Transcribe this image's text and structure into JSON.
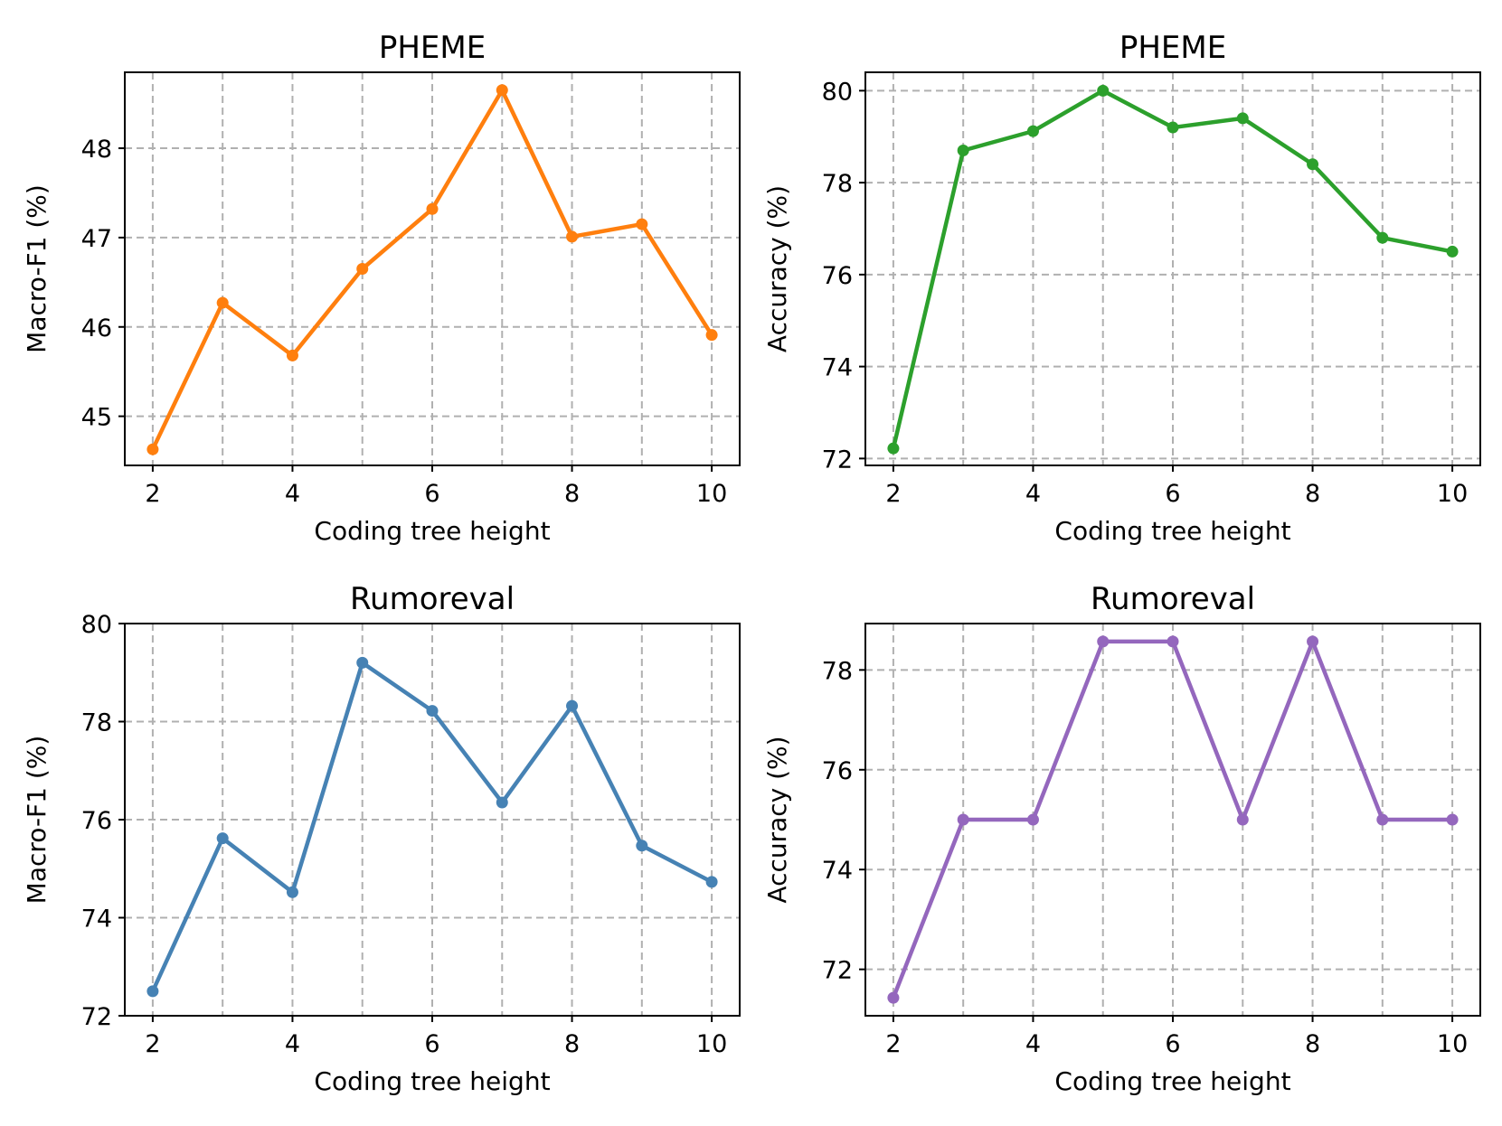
{
  "chart_data": [
    {
      "type": "line",
      "title": "PHEME",
      "xlabel": "Coding tree height",
      "ylabel": "Macro-F1 (%)",
      "color": "#ff7f0e",
      "x": [
        2,
        3,
        4,
        5,
        6,
        7,
        8,
        9,
        10
      ],
      "values": [
        44.63,
        46.27,
        45.68,
        46.65,
        47.32,
        48.65,
        47.01,
        47.15,
        45.91
      ],
      "xlim": [
        1.6,
        10.4
      ],
      "ylim": [
        44.45,
        48.85
      ],
      "xticks": [
        2,
        4,
        6,
        8,
        10
      ],
      "yticks": [
        45,
        46,
        47,
        48
      ],
      "grid": true
    },
    {
      "type": "line",
      "title": "PHEME",
      "xlabel": "Coding tree height",
      "ylabel": "Accuracy (%)",
      "color": "#2ca02c",
      "x": [
        2,
        3,
        4,
        5,
        6,
        7,
        8,
        9,
        10
      ],
      "values": [
        72.22,
        78.7,
        79.12,
        80.0,
        79.2,
        79.4,
        78.4,
        76.8,
        76.5
      ],
      "xlim": [
        1.6,
        10.4
      ],
      "ylim": [
        71.85,
        80.4
      ],
      "xticks": [
        2,
        4,
        6,
        8,
        10
      ],
      "yticks": [
        72,
        74,
        76,
        78,
        80
      ],
      "grid": true
    },
    {
      "type": "line",
      "title": "Rumoreval",
      "xlabel": "Coding tree height",
      "ylabel": "Macro-F1 (%)",
      "color": "#4682b4",
      "x": [
        2,
        3,
        4,
        5,
        6,
        7,
        8,
        9,
        10
      ],
      "values": [
        72.5,
        75.62,
        74.52,
        79.2,
        78.22,
        76.35,
        78.32,
        75.47,
        74.73
      ],
      "xlim": [
        1.6,
        10.4
      ],
      "ylim": [
        72.0,
        80.0
      ],
      "xticks": [
        2,
        4,
        6,
        8,
        10
      ],
      "yticks": [
        72,
        74,
        76,
        78,
        80
      ],
      "grid": true
    },
    {
      "type": "line",
      "title": "Rumoreval",
      "xlabel": "Coding tree height",
      "ylabel": "Accuracy (%)",
      "color": "#9467bd",
      "x": [
        2,
        3,
        4,
        5,
        6,
        7,
        8,
        9,
        10
      ],
      "values": [
        71.43,
        75.0,
        75.0,
        78.57,
        78.57,
        75.0,
        78.57,
        75.0,
        75.0
      ],
      "xlim": [
        1.6,
        10.4
      ],
      "ylim": [
        71.07,
        78.93
      ],
      "xticks": [
        2,
        4,
        6,
        8,
        10
      ],
      "yticks": [
        72,
        74,
        76,
        78
      ],
      "grid": true
    }
  ]
}
